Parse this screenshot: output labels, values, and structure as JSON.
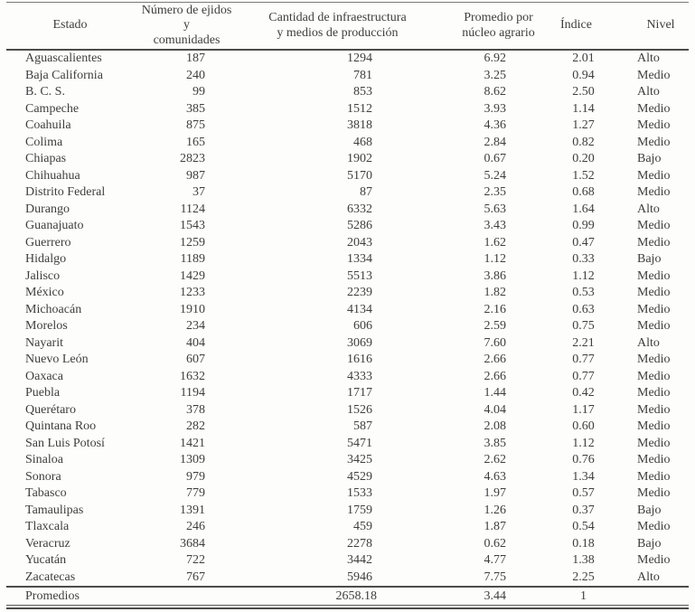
{
  "colors": {
    "text": "#3e3e3e",
    "rule_dark": "#4c4c4c",
    "rule_light": "#7a7a7a",
    "background": "#fdfdfc"
  },
  "table": {
    "columns": [
      {
        "id": "estado",
        "lines": [
          "Estado"
        ]
      },
      {
        "id": "ejidos",
        "lines": [
          "Número de ejidos y",
          "comunidades"
        ]
      },
      {
        "id": "infra",
        "lines": [
          "Cantidad de infraestructura",
          "y medios de producción"
        ]
      },
      {
        "id": "promedio",
        "lines": [
          "Promedio por",
          "núcleo agrario"
        ]
      },
      {
        "id": "indice",
        "lines": [
          "Índice"
        ]
      },
      {
        "id": "nivel",
        "lines": [
          "Nivel"
        ]
      }
    ],
    "rows": [
      [
        "Aguascalientes",
        "187",
        "1294",
        "6.92",
        "2.01",
        "Alto"
      ],
      [
        "Baja California",
        "240",
        "781",
        "3.25",
        "0.94",
        "Medio"
      ],
      [
        "B. C. S.",
        "99",
        "853",
        "8.62",
        "2.50",
        "Alto"
      ],
      [
        "Campeche",
        "385",
        "1512",
        "3.93",
        "1.14",
        "Medio"
      ],
      [
        "Coahuila",
        "875",
        "3818",
        "4.36",
        "1.27",
        "Medio"
      ],
      [
        "Colima",
        "165",
        "468",
        "2.84",
        "0.82",
        "Medio"
      ],
      [
        "Chiapas",
        "2823",
        "1902",
        "0.67",
        "0.20",
        "Bajo"
      ],
      [
        "Chihuahua",
        "987",
        "5170",
        "5.24",
        "1.52",
        "Medio"
      ],
      [
        "Distrito Federal",
        "37",
        "87",
        "2.35",
        "0.68",
        "Medio"
      ],
      [
        "Durango",
        "1124",
        "6332",
        "5.63",
        "1.64",
        "Alto"
      ],
      [
        "Guanajuato",
        "1543",
        "5286",
        "3.43",
        "0.99",
        "Medio"
      ],
      [
        "Guerrero",
        "1259",
        "2043",
        "1.62",
        "0.47",
        "Medio"
      ],
      [
        "Hidalgo",
        "1189",
        "1334",
        "1.12",
        "0.33",
        "Bajo"
      ],
      [
        "Jalisco",
        "1429",
        "5513",
        "3.86",
        "1.12",
        "Medio"
      ],
      [
        "México",
        "1233",
        "2239",
        "1.82",
        "0.53",
        "Medio"
      ],
      [
        "Michoacán",
        "1910",
        "4134",
        "2.16",
        "0.63",
        "Medio"
      ],
      [
        "Morelos",
        "234",
        "606",
        "2.59",
        "0.75",
        "Medio"
      ],
      [
        "Nayarit",
        "404",
        "3069",
        "7.60",
        "2.21",
        "Alto"
      ],
      [
        "Nuevo León",
        "607",
        "1616",
        "2.66",
        "0.77",
        "Medio"
      ],
      [
        "Oaxaca",
        "1632",
        "4333",
        "2.66",
        "0.77",
        "Medio"
      ],
      [
        "Puebla",
        "1194",
        "1717",
        "1.44",
        "0.42",
        "Medio"
      ],
      [
        "Querétaro",
        "378",
        "1526",
        "4.04",
        "1.17",
        "Medio"
      ],
      [
        "Quintana Roo",
        "282",
        "587",
        "2.08",
        "0.60",
        "Medio"
      ],
      [
        "San Luis Potosí",
        "1421",
        "5471",
        "3.85",
        "1.12",
        "Medio"
      ],
      [
        "Sinaloa",
        "1309",
        "3425",
        "2.62",
        "0.76",
        "Medio"
      ],
      [
        "Sonora",
        "979",
        "4529",
        "4.63",
        "1.34",
        "Medio"
      ],
      [
        "Tabasco",
        "779",
        "1533",
        "1.97",
        "0.57",
        "Medio"
      ],
      [
        "Tamaulipas",
        "1391",
        "1759",
        "1.26",
        "0.37",
        "Bajo"
      ],
      [
        "Tlaxcala",
        "246",
        "459",
        "1.87",
        "0.54",
        "Medio"
      ],
      [
        "Veracruz",
        "3684",
        "2278",
        "0.62",
        "0.18",
        "Bajo"
      ],
      [
        "Yucatán",
        "722",
        "3442",
        "4.77",
        "1.38",
        "Medio"
      ],
      [
        "Zacatecas",
        "767",
        "5946",
        "7.75",
        "2.25",
        "Alto"
      ]
    ],
    "footer": [
      "Promedios",
      "",
      "2658.18",
      "3.44",
      "1",
      ""
    ]
  }
}
